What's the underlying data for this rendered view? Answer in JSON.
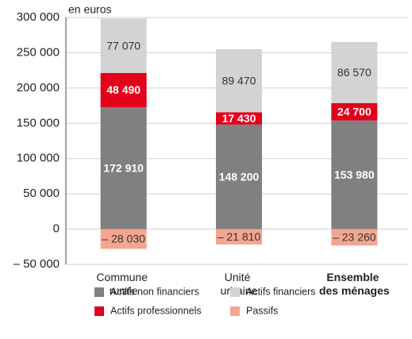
{
  "chart_data": {
    "type": "stacked_bar",
    "y_label": "en euros",
    "categories": [
      "Commune rurale",
      "Unité urbaine",
      "Ensemble des ménages"
    ],
    "highlight_category": "Ensemble des ménages",
    "series": [
      {
        "name": "Actifs non financiers",
        "color": "#808080",
        "label_color": "#ffffff",
        "values": [
          172910,
          148200,
          153980
        ],
        "value_labels": [
          "172 910",
          "148 200",
          "153 980"
        ]
      },
      {
        "name": "Actifs professionnels",
        "color": "#e3001b",
        "label_color": "#ffffff",
        "values": [
          48490,
          17430,
          24700
        ],
        "value_labels": [
          "48 490",
          "17 430",
          "24 700"
        ]
      },
      {
        "name": "Actifs financiers",
        "color": "#d3d3d3",
        "label_color": "#333333",
        "values": [
          77070,
          89470,
          86570
        ],
        "value_labels": [
          "77 070",
          "89 470",
          "86 570"
        ]
      },
      {
        "name": "Passifs",
        "color": "#f4a590",
        "label_color": "#333333",
        "values": [
          -28030,
          -21810,
          -23260
        ],
        "value_labels": [
          "– 28 030",
          "– 21 810",
          "– 23 260"
        ]
      }
    ],
    "ylim": [
      -50000,
      300000
    ],
    "yticks": [
      {
        "value": -50000,
        "label": "– 50 000"
      },
      0,
      {
        "value": 50000,
        "label": "50 000"
      },
      {
        "value": 100000,
        "label": "100 000"
      },
      {
        "value": 150000,
        "label": "150 000"
      },
      {
        "value": 200000,
        "label": "200 000"
      },
      {
        "value": 250000,
        "label": "250 000"
      },
      {
        "value": 300000,
        "label": "300 000"
      }
    ],
    "grid": true
  }
}
